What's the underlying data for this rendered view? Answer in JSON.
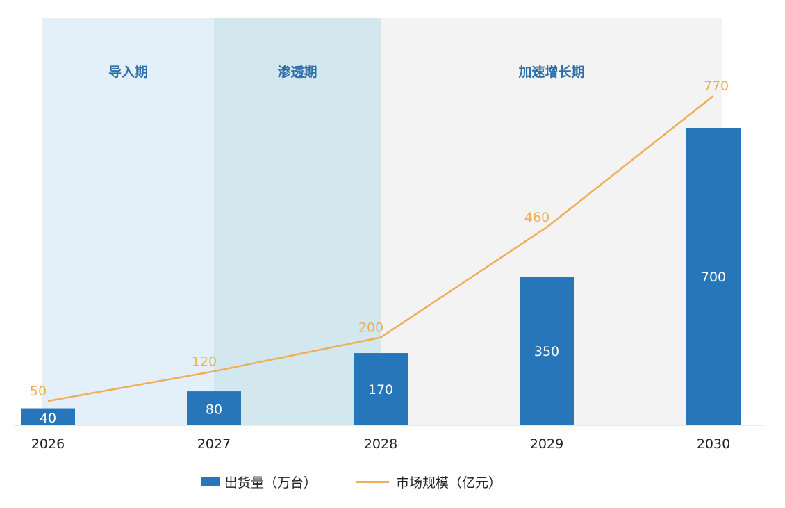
{
  "chart_data": {
    "type": "bar",
    "categories": [
      "2026",
      "2027",
      "2028",
      "2029",
      "2030"
    ],
    "series": [
      {
        "name": "出货量（万台）",
        "type": "bar",
        "values": [
          40,
          80,
          170,
          350,
          700
        ],
        "color": "#2676b9"
      },
      {
        "name": "市场规模（亿元）",
        "type": "line",
        "values": [
          50,
          120,
          200,
          460,
          770
        ],
        "color": "#f0ad56"
      }
    ],
    "phases": [
      {
        "label": "导入期",
        "from": "2026",
        "to": "2027",
        "color": "#e3f0fa"
      },
      {
        "label": "渗透期",
        "from": "2027",
        "to": "2028",
        "color": "#d3e8ee"
      },
      {
        "label": "加速增长期",
        "from": "2028",
        "to": "2030",
        "color": "#f3f3f3"
      }
    ],
    "label_color": "#2f6ea6",
    "grid": false,
    "legend_position": "bottom-center"
  }
}
